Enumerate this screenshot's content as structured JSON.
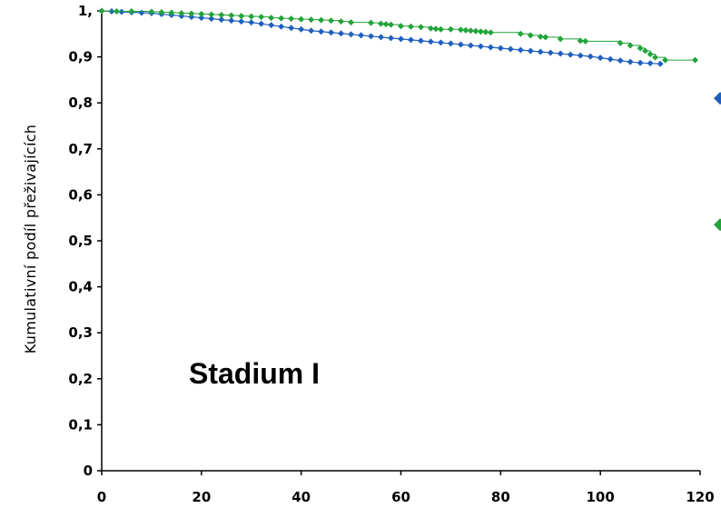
{
  "chart_data": {
    "type": "scatter",
    "title": "",
    "xlabel": "",
    "ylabel": "Kumulativní podíl přeživajících",
    "xlim": [
      0,
      120
    ],
    "ylim": [
      0,
      1
    ],
    "x_ticks": [
      0,
      20,
      40,
      60,
      80,
      100,
      120
    ],
    "x_tick_labels": [
      "0",
      "20",
      "40",
      "60",
      "80",
      "100",
      "120"
    ],
    "y_ticks": [
      0,
      0.1,
      0.2,
      0.3,
      0.4,
      0.5,
      0.6,
      0.7,
      0.8,
      0.9,
      1
    ],
    "y_tick_labels": [
      "0",
      "0,1",
      "0,2",
      "0,3",
      "0,4",
      "0,5",
      "0,6",
      "0,7",
      "0,8",
      "0,9",
      "1,"
    ],
    "grid": false,
    "annotation": "Stadium I",
    "series": [
      {
        "color": "#1f5fbf",
        "step_line": false,
        "points": [
          [
            0,
            1.0
          ],
          [
            2,
            0.999
          ],
          [
            4,
            0.998
          ],
          [
            6,
            0.997
          ],
          [
            8,
            0.996
          ],
          [
            10,
            0.995
          ],
          [
            12,
            0.993
          ],
          [
            14,
            0.991
          ],
          [
            16,
            0.989
          ],
          [
            18,
            0.987
          ],
          [
            20,
            0.985
          ],
          [
            22,
            0.983
          ],
          [
            24,
            0.981
          ],
          [
            26,
            0.979
          ],
          [
            28,
            0.977
          ],
          [
            30,
            0.975
          ],
          [
            32,
            0.972
          ],
          [
            34,
            0.969
          ],
          [
            36,
            0.966
          ],
          [
            38,
            0.963
          ],
          [
            40,
            0.96
          ],
          [
            42,
            0.957
          ],
          [
            44,
            0.955
          ],
          [
            46,
            0.953
          ],
          [
            48,
            0.951
          ],
          [
            50,
            0.949
          ],
          [
            52,
            0.947
          ],
          [
            54,
            0.945
          ],
          [
            56,
            0.943
          ],
          [
            58,
            0.941
          ],
          [
            60,
            0.939
          ],
          [
            62,
            0.937
          ],
          [
            64,
            0.935
          ],
          [
            66,
            0.933
          ],
          [
            68,
            0.931
          ],
          [
            70,
            0.929
          ],
          [
            72,
            0.927
          ],
          [
            74,
            0.925
          ],
          [
            76,
            0.923
          ],
          [
            78,
            0.921
          ],
          [
            80,
            0.919
          ],
          [
            82,
            0.917
          ],
          [
            84,
            0.915
          ],
          [
            86,
            0.913
          ],
          [
            88,
            0.911
          ],
          [
            90,
            0.909
          ],
          [
            92,
            0.907
          ],
          [
            94,
            0.905
          ],
          [
            96,
            0.903
          ],
          [
            98,
            0.901
          ],
          [
            100,
            0.898
          ],
          [
            102,
            0.895
          ],
          [
            104,
            0.892
          ],
          [
            106,
            0.889
          ],
          [
            108,
            0.887
          ],
          [
            110,
            0.886
          ],
          [
            112,
            0.885
          ]
        ]
      },
      {
        "color": "#22a33a",
        "step_line": true,
        "points": [
          [
            0,
            1.0
          ],
          [
            3,
            0.999
          ],
          [
            6,
            0.999
          ],
          [
            10,
            0.998
          ],
          [
            12,
            0.997
          ],
          [
            14,
            0.996
          ],
          [
            16,
            0.995
          ],
          [
            18,
            0.994
          ],
          [
            20,
            0.993
          ],
          [
            22,
            0.992
          ],
          [
            24,
            0.991
          ],
          [
            26,
            0.99
          ],
          [
            28,
            0.989
          ],
          [
            30,
            0.988
          ],
          [
            32,
            0.987
          ],
          [
            34,
            0.985
          ],
          [
            36,
            0.984
          ],
          [
            38,
            0.983
          ],
          [
            40,
            0.982
          ],
          [
            42,
            0.981
          ],
          [
            44,
            0.98
          ],
          [
            46,
            0.979
          ],
          [
            48,
            0.977
          ],
          [
            50,
            0.975
          ],
          [
            54,
            0.974
          ],
          [
            56,
            0.972
          ],
          [
            57,
            0.971
          ],
          [
            58,
            0.97
          ],
          [
            60,
            0.967
          ],
          [
            62,
            0.966
          ],
          [
            64,
            0.965
          ],
          [
            66,
            0.962
          ],
          [
            67,
            0.961
          ],
          [
            68,
            0.96
          ],
          [
            70,
            0.96
          ],
          [
            72,
            0.959
          ],
          [
            73,
            0.958
          ],
          [
            74,
            0.957
          ],
          [
            75,
            0.956
          ],
          [
            76,
            0.955
          ],
          [
            77,
            0.954
          ],
          [
            78,
            0.953
          ],
          [
            84,
            0.95
          ],
          [
            86,
            0.947
          ],
          [
            88,
            0.944
          ],
          [
            89,
            0.943
          ],
          [
            92,
            0.939
          ],
          [
            96,
            0.935
          ],
          [
            97,
            0.934
          ],
          [
            104,
            0.93
          ],
          [
            106,
            0.925
          ],
          [
            108,
            0.919
          ],
          [
            109,
            0.913
          ],
          [
            110,
            0.906
          ],
          [
            111,
            0.899
          ],
          [
            113,
            0.893
          ],
          [
            119,
            0.893
          ]
        ]
      }
    ],
    "legend_markers": [
      {
        "color": "#1f5fbf",
        "y": 0.81
      },
      {
        "color": "#22a33a",
        "y": 0.535
      }
    ]
  }
}
